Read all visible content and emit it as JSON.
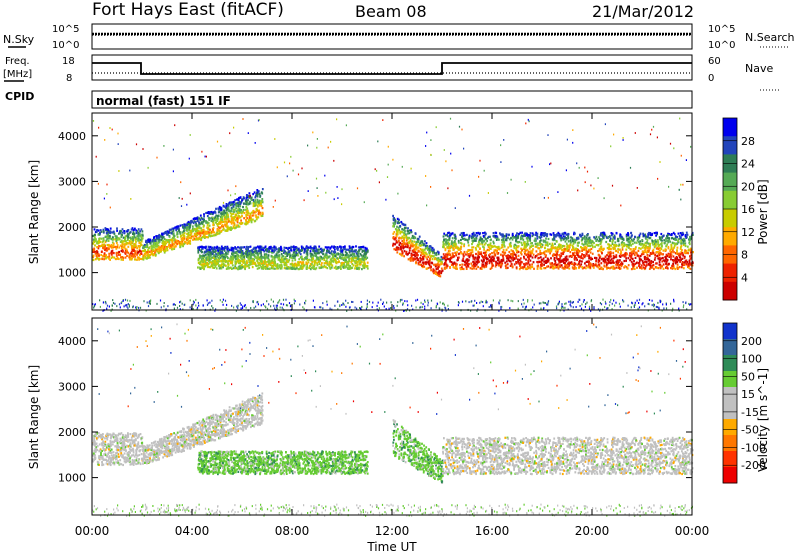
{
  "header": {
    "station": "Fort Hays East (fitACF)",
    "beam": "Beam 08",
    "date": "21/Mar/2012"
  },
  "noise_panel": {
    "left_label": "N.Sky",
    "right_label": "N.Search",
    "left_ticks": [
      "10^5",
      "10^0"
    ],
    "right_ticks": [
      "10^5",
      "10^0"
    ]
  },
  "freq_panel": {
    "left_label_1": "Freq.",
    "left_label_2": "[MHz]",
    "right_label": "Nave",
    "left_ticks": [
      "18",
      "8"
    ],
    "right_ticks": [
      "60",
      "0"
    ],
    "cpid_label": "CPID",
    "cpid_text": "normal (fast) 151 IF"
  },
  "chart_data": [
    {
      "type": "heatmap",
      "title": "",
      "xlabel": "Time UT",
      "ylabel": "Slant Range [km]",
      "x_ticks": [
        "00:00",
        "04:00",
        "08:00",
        "12:00",
        "16:00",
        "20:00",
        "00:00"
      ],
      "y_ticks": [
        "1000",
        "2000",
        "3000",
        "4000"
      ],
      "xlim_hours": [
        0,
        24
      ],
      "ylim_km": [
        180,
        4500
      ],
      "colorbar": {
        "label": "Power [dB]",
        "ticks": [
          "28",
          "24",
          "20",
          "16",
          "12",
          "8",
          "4"
        ],
        "colors": [
          "#0000ee",
          "#2244bb",
          "#2e7d55",
          "#55aa55",
          "#88cc33",
          "#c8cc00",
          "#ffaa00",
          "#ff6600",
          "#ee2200",
          "#cc0000"
        ]
      },
      "bands": [
        {
          "t0": 0.0,
          "t1": 2.0,
          "r0": 1300,
          "r1": 2000,
          "peak_dB": 24
        },
        {
          "t0": 2.0,
          "t1": 6.8,
          "r0": 1300,
          "r1": 2900,
          "peak_dB": 20
        },
        {
          "t0": 4.2,
          "t1": 11.0,
          "r0": 1100,
          "r1": 1600,
          "peak_dB": 16
        },
        {
          "t0": 12.0,
          "t1": 14.0,
          "r0": 900,
          "r1": 2200,
          "peak_dB": 28
        },
        {
          "t0": 14.0,
          "t1": 24.0,
          "r0": 1100,
          "r1": 1900,
          "peak_dB": 28
        }
      ]
    },
    {
      "type": "heatmap",
      "title": "",
      "xlabel": "Time UT",
      "ylabel": "Slant Range [km]",
      "x_ticks": [
        "00:00",
        "04:00",
        "08:00",
        "12:00",
        "16:00",
        "20:00",
        "00:00"
      ],
      "y_ticks": [
        "1000",
        "2000",
        "3000",
        "4000"
      ],
      "xlim_hours": [
        0,
        24
      ],
      "ylim_km": [
        180,
        4500
      ],
      "colorbar": {
        "label": "Velocity [m s^-1]",
        "ticks": [
          "200",
          "100",
          "50",
          "15",
          "-15",
          "-50",
          "-100",
          "-200"
        ],
        "colors": [
          "#1133cc",
          "#336699",
          "#2e8b57",
          "#66cc33",
          "#c0c0c0",
          "#c0c0c0",
          "#ffaa00",
          "#ff7700",
          "#ff3300",
          "#ee0000"
        ]
      },
      "bands": [
        {
          "t0": 0.0,
          "t1": 2.0,
          "r0": 1300,
          "r1": 2000,
          "vel": 0
        },
        {
          "t0": 2.0,
          "t1": 6.8,
          "r0": 1300,
          "r1": 2900,
          "vel": 0
        },
        {
          "t0": 4.2,
          "t1": 11.0,
          "r0": 1100,
          "r1": 1600,
          "vel": 40
        },
        {
          "t0": 12.0,
          "t1": 14.0,
          "r0": 900,
          "r1": 2200,
          "vel": 40
        },
        {
          "t0": 14.0,
          "t1": 24.0,
          "r0": 1100,
          "r1": 1900,
          "vel": 0
        }
      ]
    }
  ]
}
